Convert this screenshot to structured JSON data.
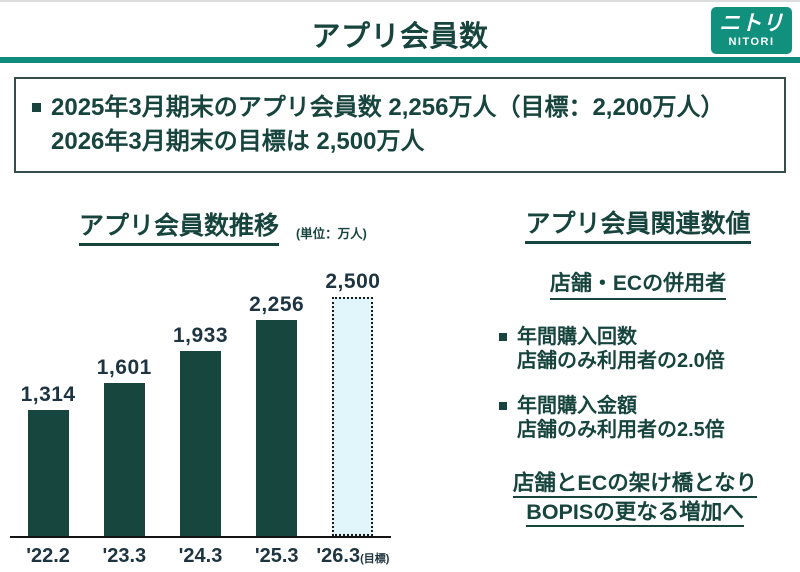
{
  "header": {
    "title": "アプリ会員数",
    "logo": {
      "jp": "ニトリ",
      "en": "NITORI"
    }
  },
  "summary_box": {
    "line1": "2025年3月期末のアプリ会員数 2,256万人（目標：2,200万人）",
    "line2": "2026年3月期末の目標は 2,500万人"
  },
  "chart_section": {
    "title": "アプリ会員数推移",
    "unit_label": "(単位：万人)"
  },
  "chart_data": {
    "type": "bar",
    "title": "アプリ会員数推移",
    "unit": "万人",
    "categories": [
      "'22.2",
      "'23.3",
      "'24.3",
      "'25.3",
      "'26.3"
    ],
    "values": [
      1314,
      1601,
      1933,
      2256,
      2500
    ],
    "value_labels": [
      "1,314",
      "1,601",
      "1,933",
      "2,256",
      "2,500"
    ],
    "target_index": 4,
    "target_suffix": "(目標)",
    "ylim": [
      0,
      2600
    ],
    "grid": false,
    "legend_position": "none",
    "bar_color": "#17463f",
    "target_bar_fill": "#e1f6fa"
  },
  "right_panel": {
    "title": "アプリ会員関連数値",
    "subtitle": "店舗・ECの併用者",
    "bullets": [
      {
        "line1": "年間購入回数",
        "line2": "店舗のみ利用者の2.0倍"
      },
      {
        "line1": "年間購入金額",
        "line2": "店舗のみ利用者の2.5倍"
      }
    ],
    "footer_line1": "店舗とECの架け橋となり",
    "footer_line2": "BOPISの更なる増加へ"
  },
  "colors": {
    "brand_teal": "#12907e",
    "rule_teal": "#0f8c7c",
    "dark_text": "#17453e",
    "bar_dark": "#17463f",
    "target_bar_fill": "#e1f6fa"
  }
}
